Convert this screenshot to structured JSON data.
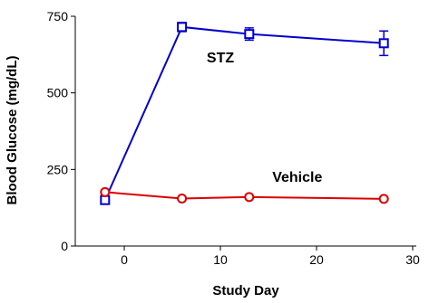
{
  "chart_data": {
    "type": "line",
    "title": "",
    "xlabel": "Study Day",
    "ylabel": "Blood Glucose (mg/dL)",
    "xlim": [
      -5,
      30
    ],
    "ylim": [
      0,
      750
    ],
    "x_ticks": [
      0,
      10,
      20,
      30
    ],
    "y_ticks": [
      0,
      250,
      500,
      750
    ],
    "grid": false,
    "legend": "none",
    "series": [
      {
        "name": "STZ",
        "color": "#0000cc",
        "marker": "square",
        "points": [
          {
            "x": -2,
            "y": 150,
            "err": 0
          },
          {
            "x": 6,
            "y": 715,
            "err": 15
          },
          {
            "x": 13,
            "y": 692,
            "err": 20
          },
          {
            "x": 27,
            "y": 662,
            "err": 40
          }
        ]
      },
      {
        "name": "Vehicle",
        "color": "#dd0000",
        "marker": "circle",
        "points": [
          {
            "x": -2,
            "y": 176,
            "err": 0
          },
          {
            "x": 6,
            "y": 155,
            "err": 0
          },
          {
            "x": 13,
            "y": 160,
            "err": 0
          },
          {
            "x": 27,
            "y": 154,
            "err": 0
          }
        ]
      }
    ],
    "annotations": [
      {
        "text": "STZ",
        "series": "STZ",
        "x": 10,
        "y": 600
      },
      {
        "text": "Vehicle",
        "series": "Vehicle",
        "x": 18,
        "y": 210
      }
    ]
  }
}
